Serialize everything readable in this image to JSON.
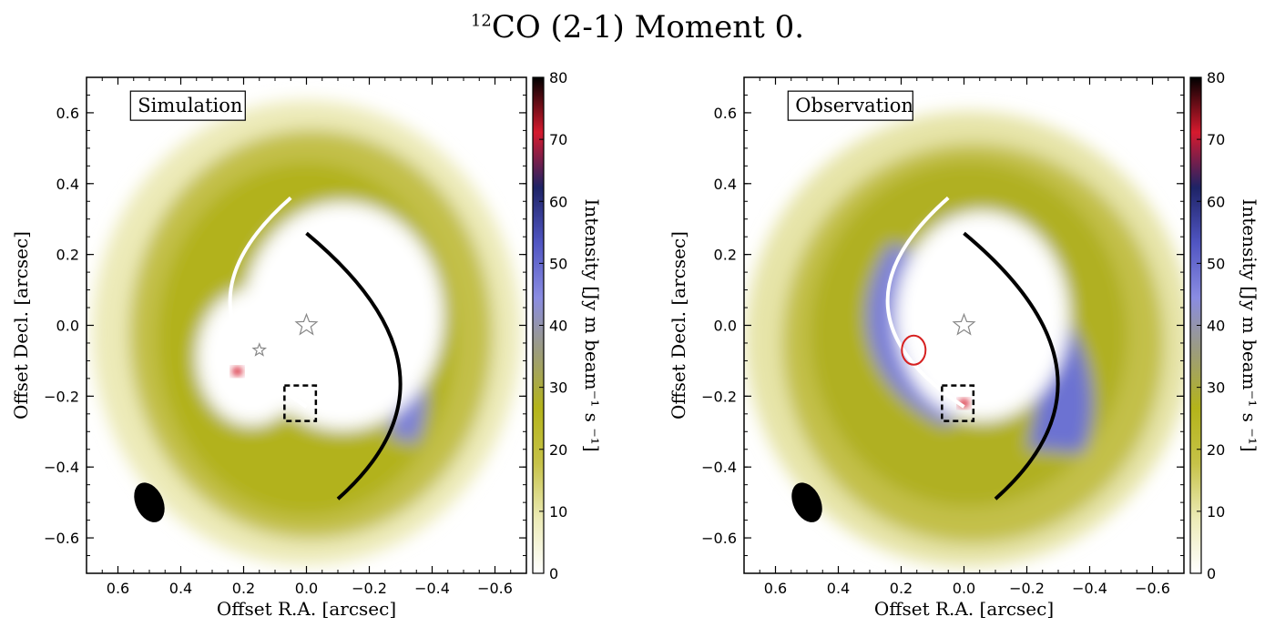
{
  "figure": {
    "title_sup": "12",
    "title_main": "CO (2-1) Moment 0."
  },
  "chart_data": [
    {
      "type": "heatmap",
      "panel_label": "Simulation",
      "xlabel": "Offset R.A. [arcsec]",
      "ylabel": "Offset Decl. [arcsec]",
      "xlim": [
        0.7,
        -0.7
      ],
      "ylim": [
        -0.7,
        0.7
      ],
      "xticks": [
        0.6,
        0.4,
        0.2,
        0.0,
        -0.2,
        -0.4,
        -0.6
      ],
      "xtick_labels": [
        "0.6",
        "0.4",
        "0.2",
        "0.0",
        "−0.2",
        "−0.4",
        "−0.6"
      ],
      "yticks": [
        0.6,
        0.4,
        0.2,
        0.0,
        -0.2,
        -0.4,
        -0.6
      ],
      "ytick_labels": [
        "0.6",
        "0.4",
        "0.2",
        "0.0",
        "−0.2",
        "−0.4",
        "−0.6"
      ],
      "colorbar": {
        "label": "Intensity [Jy m beam⁻¹ s ⁻¹]",
        "range": [
          0,
          80
        ],
        "ticks": [
          "0",
          "10",
          "20",
          "30",
          "40",
          "50",
          "60",
          "70",
          "80"
        ],
        "colors": [
          "#ffffff",
          "#ecebb6",
          "#c6c248",
          "#b4b41a",
          "#9d9d7a",
          "#8a8ce2",
          "#5055c2",
          "#1e2366",
          "#d61a2e",
          "#000000"
        ]
      },
      "markers": [
        {
          "type": "star",
          "x": 0.0,
          "y": 0.0,
          "size": "large",
          "color": "#ffffff"
        },
        {
          "type": "star",
          "x": 0.15,
          "y": -0.07,
          "size": "small",
          "color": "#ffffff"
        },
        {
          "type": "dashed-box",
          "x": [
            -0.03,
            0.07
          ],
          "y": [
            -0.27,
            -0.17
          ]
        }
      ],
      "arcs": [
        {
          "color": "#ffffff",
          "from": [
            0.05,
            0.36
          ],
          "to": [
            0.0,
            -0.23
          ]
        },
        {
          "color": "#000000",
          "from": [
            0.0,
            0.26
          ],
          "to": [
            -0.1,
            -0.49
          ]
        }
      ],
      "beam": {
        "x": 0.5,
        "y": -0.5
      }
    },
    {
      "type": "heatmap",
      "panel_label": "Observation",
      "xlabel": "Offset R.A. [arcsec]",
      "ylabel": "Offset Decl. [arcsec]",
      "xlim": [
        0.7,
        -0.7
      ],
      "ylim": [
        -0.7,
        0.7
      ],
      "xticks": [
        0.6,
        0.4,
        0.2,
        0.0,
        -0.2,
        -0.4,
        -0.6
      ],
      "xtick_labels": [
        "0.6",
        "0.4",
        "0.2",
        "0.0",
        "−0.2",
        "−0.4",
        "−0.6"
      ],
      "yticks": [
        0.6,
        0.4,
        0.2,
        0.0,
        -0.2,
        -0.4,
        -0.6
      ],
      "ytick_labels": [
        "0.6",
        "0.4",
        "0.2",
        "0.0",
        "−0.2",
        "−0.4",
        "−0.6"
      ],
      "colorbar": {
        "label": "Intensity [Jy m beam⁻¹ s ⁻¹]",
        "range": [
          0,
          80
        ],
        "ticks": [
          "0",
          "10",
          "20",
          "30",
          "40",
          "50",
          "60",
          "70",
          "80"
        ],
        "colors": [
          "#ffffff",
          "#ecebb6",
          "#c6c248",
          "#b4b41a",
          "#9d9d7a",
          "#8a8ce2",
          "#5055c2",
          "#1e2366",
          "#d61a2e",
          "#000000"
        ]
      },
      "markers": [
        {
          "type": "star",
          "x": 0.0,
          "y": 0.0,
          "size": "large",
          "color": "#ffffff"
        },
        {
          "type": "circle",
          "x": 0.16,
          "y": -0.07,
          "color": "#d62020"
        },
        {
          "type": "dashed-box",
          "x": [
            -0.03,
            0.07
          ],
          "y": [
            -0.27,
            -0.17
          ]
        }
      ],
      "arcs": [
        {
          "color": "#ffffff",
          "from": [
            0.05,
            0.36
          ],
          "to": [
            0.0,
            -0.23
          ]
        },
        {
          "color": "#000000",
          "from": [
            0.0,
            0.26
          ],
          "to": [
            -0.1,
            -0.49
          ]
        }
      ],
      "beam": {
        "x": 0.5,
        "y": -0.5
      }
    }
  ]
}
